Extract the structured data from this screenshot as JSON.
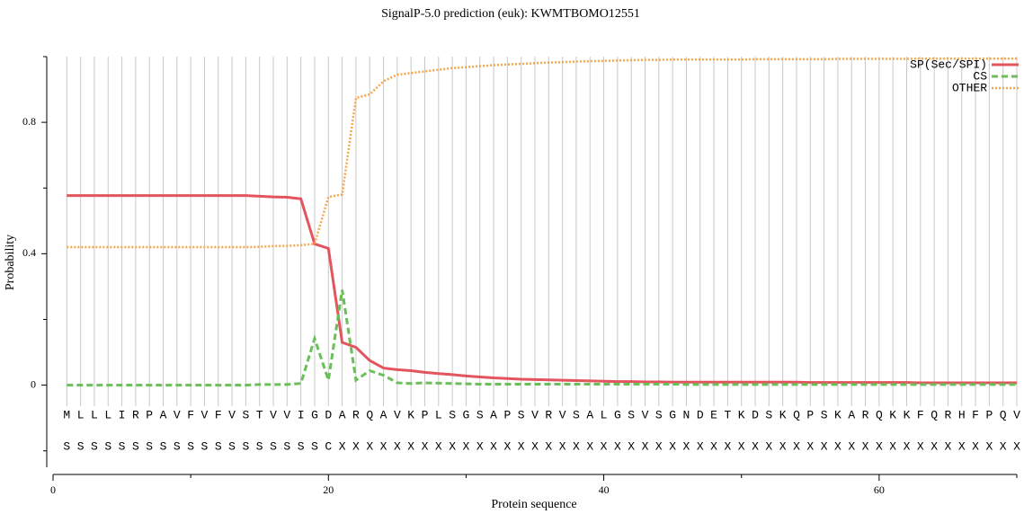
{
  "chart_data": {
    "type": "line",
    "title": "SignalP-5.0 prediction (euk):  KWMTBOMO12551",
    "x_label": "Protein sequence",
    "y_label": "Probability",
    "x": [
      1,
      2,
      3,
      4,
      5,
      6,
      7,
      8,
      9,
      10,
      11,
      12,
      13,
      14,
      15,
      16,
      17,
      18,
      19,
      20,
      21,
      22,
      23,
      24,
      25,
      26,
      27,
      28,
      29,
      30,
      31,
      32,
      33,
      34,
      35,
      36,
      37,
      38,
      39,
      40,
      41,
      42,
      43,
      44,
      45,
      46,
      47,
      48,
      49,
      50,
      51,
      52,
      53,
      54,
      55,
      56,
      57,
      58,
      59,
      60,
      61,
      62,
      63,
      64,
      65,
      66,
      67,
      68,
      69,
      70
    ],
    "sequence": [
      "M",
      "L",
      "L",
      "L",
      "I",
      "R",
      "P",
      "A",
      "V",
      "F",
      "V",
      "F",
      "V",
      "S",
      "T",
      "V",
      "V",
      "I",
      "G",
      "D",
      "A",
      "R",
      "Q",
      "A",
      "V",
      "K",
      "P",
      "L",
      "S",
      "G",
      "S",
      "A",
      "P",
      "S",
      "V",
      "R",
      "V",
      "S",
      "A",
      "L",
      "G",
      "S",
      "V",
      "S",
      "G",
      "N",
      "D",
      "E",
      "T",
      "K",
      "D",
      "S",
      "K",
      "Q",
      "P",
      "S",
      "K",
      "A",
      "R",
      "Q",
      "K",
      "K",
      "F",
      "Q",
      "R",
      "H",
      "F",
      "P",
      "Q",
      "V"
    ],
    "predicted_labels": [
      "S",
      "S",
      "S",
      "S",
      "S",
      "S",
      "S",
      "S",
      "S",
      "S",
      "S",
      "S",
      "S",
      "S",
      "S",
      "S",
      "S",
      "S",
      "S",
      "C",
      "X",
      "X",
      "X",
      "X",
      "X",
      "X",
      "X",
      "X",
      "X",
      "X",
      "X",
      "X",
      "X",
      "X",
      "X",
      "X",
      "X",
      "X",
      "X",
      "X",
      "X",
      "X",
      "X",
      "X",
      "X",
      "X",
      "X",
      "X",
      "X",
      "X",
      "X",
      "X",
      "X",
      "X",
      "X",
      "X",
      "X",
      "X",
      "X",
      "X",
      "X",
      "X",
      "X",
      "X",
      "X",
      "X",
      "X",
      "X",
      "X",
      "X"
    ],
    "series": [
      {
        "name": "SP(Sec/SPI)",
        "color": "#e3555e",
        "dash": "solid",
        "values": [
          0.577,
          0.577,
          0.577,
          0.577,
          0.577,
          0.577,
          0.577,
          0.577,
          0.577,
          0.577,
          0.577,
          0.577,
          0.577,
          0.577,
          0.575,
          0.573,
          0.572,
          0.567,
          0.43,
          0.416,
          0.13,
          0.115,
          0.075,
          0.052,
          0.047,
          0.044,
          0.039,
          0.035,
          0.032,
          0.028,
          0.025,
          0.022,
          0.02,
          0.018,
          0.017,
          0.016,
          0.015,
          0.014,
          0.013,
          0.012,
          0.011,
          0.011,
          0.01,
          0.01,
          0.009,
          0.009,
          0.009,
          0.009,
          0.009,
          0.009,
          0.009,
          0.009,
          0.009,
          0.009,
          0.008,
          0.008,
          0.008,
          0.008,
          0.008,
          0.008,
          0.008,
          0.008,
          0.007,
          0.007,
          0.007,
          0.007,
          0.007,
          0.007,
          0.007,
          0.007
        ]
      },
      {
        "name": "CS",
        "color": "#6abf5a",
        "dash": "dashed",
        "values": [
          0,
          0,
          0,
          0,
          0,
          0,
          0,
          0,
          0,
          0,
          0,
          0,
          0,
          0,
          0.002,
          0.002,
          0.002,
          0.005,
          0.142,
          0.015,
          0.29,
          0.015,
          0.044,
          0.03,
          0.007,
          0.005,
          0.007,
          0.006,
          0.005,
          0.004,
          0.003,
          0.003,
          0.003,
          0.003,
          0.003,
          0.003,
          0.003,
          0.003,
          0.003,
          0.003,
          0.003,
          0.003,
          0.003,
          0.003,
          0.003,
          0.002,
          0.002,
          0.002,
          0.002,
          0.002,
          0.002,
          0.002,
          0.002,
          0.002,
          0.002,
          0.002,
          0.002,
          0.002,
          0.002,
          0.002,
          0.002,
          0.002,
          0.002,
          0.002,
          0.002,
          0.002,
          0.002,
          0.002,
          0.002,
          0.002
        ]
      },
      {
        "name": "OTHER",
        "color": "#f5a54a",
        "dash": "dotted",
        "values": [
          0.42,
          0.42,
          0.42,
          0.42,
          0.42,
          0.42,
          0.42,
          0.42,
          0.42,
          0.42,
          0.42,
          0.42,
          0.42,
          0.42,
          0.421,
          0.423,
          0.424,
          0.426,
          0.43,
          0.573,
          0.58,
          0.874,
          0.885,
          0.925,
          0.945,
          0.95,
          0.955,
          0.96,
          0.965,
          0.968,
          0.971,
          0.974,
          0.976,
          0.978,
          0.98,
          0.982,
          0.983,
          0.985,
          0.986,
          0.987,
          0.988,
          0.989,
          0.99,
          0.99,
          0.991,
          0.991,
          0.991,
          0.991,
          0.991,
          0.991,
          0.992,
          0.992,
          0.992,
          0.992,
          0.992,
          0.992,
          0.993,
          0.993,
          0.993,
          0.993,
          0.993,
          0.993,
          0.994,
          0.994,
          0.994,
          0.994,
          0.994,
          0.994,
          0.994,
          0.994
        ]
      }
    ],
    "xlim": [
      0,
      70
    ],
    "xticks": [
      0,
      20,
      40,
      60
    ],
    "xminorticks": [
      10,
      30,
      50,
      70
    ],
    "ylim": [
      -0.25,
      1.0
    ],
    "yticks": [
      0,
      0.4,
      0.8
    ],
    "yminorticks": [
      -0.2,
      0.2,
      0.6,
      1.0
    ],
    "grid": true,
    "legend": "upper right"
  }
}
